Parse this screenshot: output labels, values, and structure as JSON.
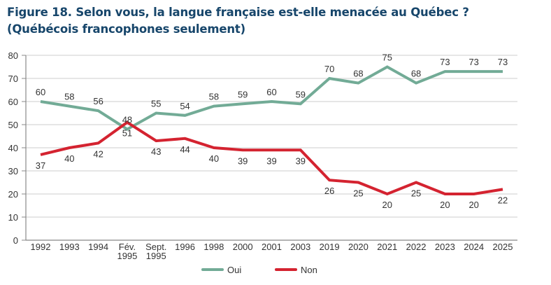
{
  "title_line1": "Figure 18. Selon vous, la langue française est-elle menacée au Québec ?",
  "title_line2": "(Québécois francophones seulement)",
  "chart_data": {
    "type": "line",
    "title": "Figure 18. Selon vous, la langue française est-elle menacée au Québec ? (Québécois francophones seulement)",
    "xlabel": "",
    "ylabel": "",
    "categories": [
      [
        "1992"
      ],
      [
        "1993"
      ],
      [
        "1994"
      ],
      [
        "Fév.",
        "1995"
      ],
      [
        "Sept.",
        "1995"
      ],
      [
        "1996"
      ],
      [
        "1998"
      ],
      [
        "2000"
      ],
      [
        "2001"
      ],
      [
        "2003"
      ],
      [
        "2019"
      ],
      [
        "2020"
      ],
      [
        "2021"
      ],
      [
        "2022"
      ],
      [
        "2023"
      ],
      [
        "2024"
      ],
      [
        "2025"
      ]
    ],
    "ylim": [
      0,
      80
    ],
    "yticks": [
      0,
      10,
      20,
      30,
      40,
      50,
      60,
      70,
      80
    ],
    "grid": true,
    "legend_position": "bottom-center",
    "series": [
      {
        "name": "Oui",
        "color": "#72ab96",
        "values": [
          60,
          58,
          56,
          48,
          55,
          54,
          58,
          59,
          60,
          59,
          70,
          68,
          75,
          68,
          73,
          73,
          73
        ],
        "label_position": "above"
      },
      {
        "name": "Non",
        "color": "#d42330",
        "values": [
          37,
          40,
          42,
          51,
          43,
          44,
          40,
          39,
          39,
          39,
          26,
          25,
          20,
          25,
          20,
          20,
          22
        ],
        "label_position": "below"
      }
    ]
  }
}
